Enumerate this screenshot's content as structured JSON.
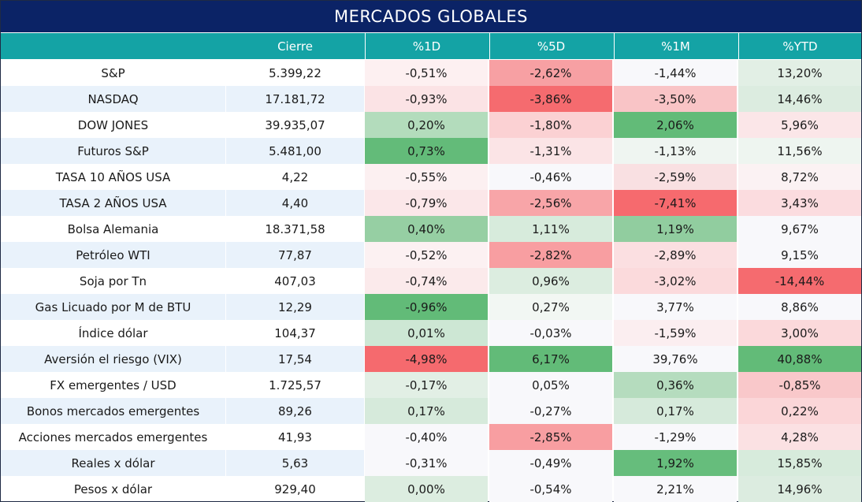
{
  "title": "MERCADOS GLOBALES",
  "headers": [
    "",
    "Cierre",
    "%1D",
    "%5D",
    "%1M",
    "%YTD"
  ],
  "colors": {
    "title_bg": "#0b2366",
    "header_bg": "#14a3a5",
    "alt_row_bg": "#e9f2fb"
  },
  "rows": [
    {
      "name": "S&P",
      "close": "5.399,22",
      "d1": "-0,51%",
      "d5": "-2,62%",
      "m1": "-1,44%",
      "ytd": "13,20%",
      "bg": [
        "#fdf0f1",
        "#f7a0a3",
        "#f8f8fb",
        "#e2efe5"
      ]
    },
    {
      "name": "NASDAQ",
      "close": "17.181,72",
      "d1": "-0,93%",
      "d5": "-3,86%",
      "m1": "-3,50%",
      "ytd": "14,46%",
      "bg": [
        "#fbe3e5",
        "#f56b6f",
        "#f9c4c6",
        "#dcece0"
      ]
    },
    {
      "name": "DOW JONES",
      "close": "39.935,07",
      "d1": "0,20%",
      "d5": "-1,80%",
      "m1": "2,06%",
      "ytd": "5,96%",
      "bg": [
        "#b3dcbc",
        "#fbd1d3",
        "#62bb78",
        "#fbe6e8"
      ]
    },
    {
      "name": "Futuros S&P",
      "close": "5.481,00",
      "d1": "0,73%",
      "d5": "-1,31%",
      "m1": "-1,13%",
      "ytd": "11,56%",
      "bg": [
        "#63bb79",
        "#fbe4e6",
        "#eff5f1",
        "#eef5f0"
      ]
    },
    {
      "name": "TASA 10 AÑOS USA",
      "close": "4,22",
      "d1": "-0,55%",
      "d5": "-0,46%",
      "m1": "-2,59%",
      "ytd": "8,72%",
      "bg": [
        "#fcf0f1",
        "#f8f8fb",
        "#f9e0e2",
        "#fbf2f3"
      ]
    },
    {
      "name": "TASA 2 AÑOS USA",
      "close": "4,40",
      "d1": "-0,79%",
      "d5": "-2,56%",
      "m1": "-7,41%",
      "ytd": "3,43%",
      "bg": [
        "#fbe7e9",
        "#f8a5a8",
        "#f66a6e",
        "#fbdcdf"
      ]
    },
    {
      "name": "Bolsa Alemania",
      "close": "18.371,58",
      "d1": "0,40%",
      "d5": "1,11%",
      "m1": "1,19%",
      "ytd": "9,67%",
      "bg": [
        "#96cfa3",
        "#d7ebdc",
        "#91cd9f",
        "#f8f8fb"
      ]
    },
    {
      "name": "Petróleo WTI",
      "close": "77,87",
      "d1": "-0,52%",
      "d5": "-2,82%",
      "m1": "-2,89%",
      "ytd": "9,15%",
      "bg": [
        "#fcf1f2",
        "#f89ea1",
        "#fbdfe1",
        "#f8f8fb"
      ]
    },
    {
      "name": "Soja por Tn",
      "close": "407,03",
      "d1": "-0,74%",
      "d5": "0,96%",
      "m1": "-3,02%",
      "ytd": "-14,44%",
      "bg": [
        "#fbeaeb",
        "#dcede0",
        "#fbdadc",
        "#f56b6f"
      ]
    },
    {
      "name": "Gas Licuado por M de BTU",
      "close": "12,29",
      "d1": "-0,96%",
      "d5": "0,27%",
      "m1": "3,77%",
      "ytd": "8,86%",
      "bg": [
        "#62bb78",
        "#f2f7f3",
        "#f8f8fb",
        "#f8f8fb"
      ]
    },
    {
      "name": "Índice dólar",
      "close": "104,37",
      "d1": "0,01%",
      "d5": "-0,03%",
      "m1": "-1,59%",
      "ytd": "3,00%",
      "bg": [
        "#cde7d4",
        "#f8f8fb",
        "#fbeef0",
        "#fbd9db"
      ]
    },
    {
      "name": "Aversión el riesgo (VIX)",
      "close": "17,54",
      "d1": "-4,98%",
      "d5": "6,17%",
      "m1": "39,76%",
      "ytd": "40,88%",
      "bg": [
        "#f56a6e",
        "#62bb78",
        "#f8f8fb",
        "#62bb78"
      ]
    },
    {
      "name": "FX emergentes / USD",
      "close": "1.725,57",
      "d1": "-0,17%",
      "d5": "0,05%",
      "m1": "0,36%",
      "ytd": "-0,85%",
      "bg": [
        "#e2efe5",
        "#f8f8fb",
        "#b5dcbe",
        "#f9c8ca"
      ]
    },
    {
      "name": "Bonos mercados emergentes",
      "close": "89,26",
      "d1": "0,17%",
      "d5": "-0,27%",
      "m1": "0,17%",
      "ytd": "0,22%",
      "bg": [
        "#d6eadb",
        "#f8f8fb",
        "#d6eadb",
        "#fbd6d8"
      ]
    },
    {
      "name": "Acciones mercados emergentes",
      "close": "41,93",
      "d1": "-0,40%",
      "d5": "-2,85%",
      "m1": "-1,29%",
      "ytd": "4,28%",
      "bg": [
        "#f8f8fb",
        "#f89ea1",
        "#f8f8fb",
        "#fbe1e3"
      ]
    },
    {
      "name": "Reales x dólar",
      "close": "5,63",
      "d1": "-0,31%",
      "d5": "-0,49%",
      "m1": "1,92%",
      "ytd": "15,85%",
      "bg": [
        "#f8f8fb",
        "#f8f8fb",
        "#66bd7c",
        "#d7ebdc"
      ]
    },
    {
      "name": "Pesos x dólar",
      "close": "929,40",
      "d1": "0,00%",
      "d5": "-0,54%",
      "m1": "2,21%",
      "ytd": "14,96%",
      "bg": [
        "#dcede0",
        "#f8f8fb",
        "#f8f8fb",
        "#dcece0"
      ]
    }
  ]
}
